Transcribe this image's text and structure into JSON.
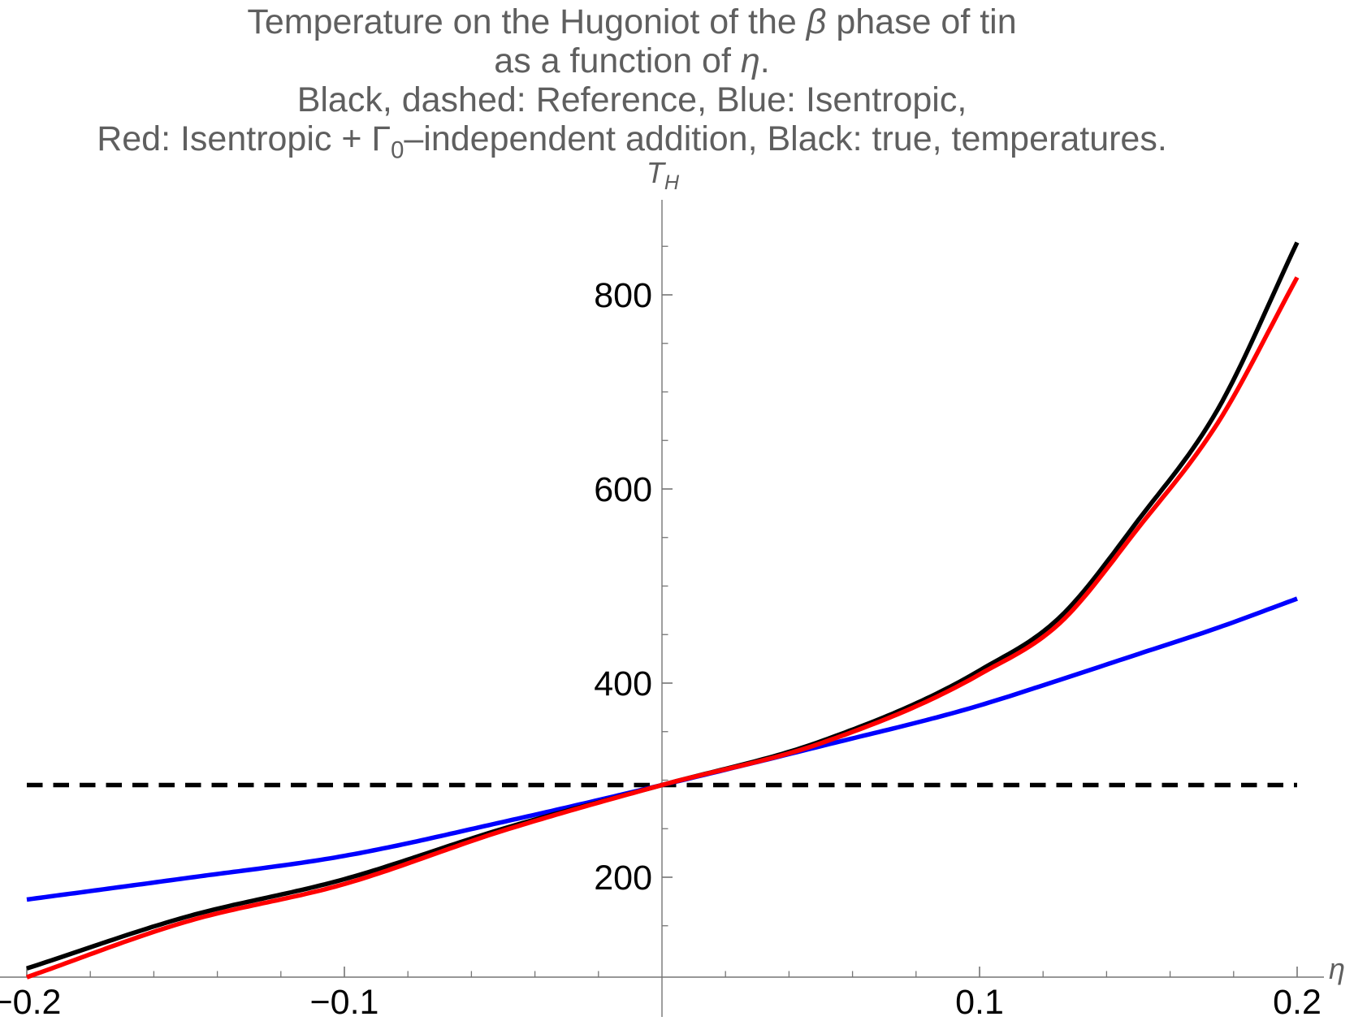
{
  "title": {
    "line1_pre": "Temperature on the Hugoniot of the ",
    "line1_italic": "β",
    "line1_post": " phase of tin",
    "line2_pre": "as a function of ",
    "line2_italic": "η",
    "line2_post": ".",
    "line3": "Black, dashed: Reference, Blue: Isentropic,",
    "line4_pre": "Red: Isentropic + Γ",
    "line4_sub": "0",
    "line4_post": "–independent addition, Black: true, temperatures."
  },
  "chart_data": {
    "type": "line",
    "title": "Temperature on the Hugoniot of the β phase of tin as a function of η. Black, dashed: Reference, Blue: Isentropic, Red: Isentropic + Γ0–independent addition, Black: true, temperatures.",
    "xlabel": "η",
    "ylabel": "TH",
    "ylabel_main": "T",
    "ylabel_sub": "H",
    "xlim": [
      -0.2,
      0.2
    ],
    "ylim": [
      60,
      900
    ],
    "grid": false,
    "legend_position": "in-title",
    "axes_color": "#757575",
    "tick_label_color": "#000000",
    "title_color": "#5f5f5f",
    "x_ticks": [
      -0.2,
      -0.1,
      0.1,
      0.2
    ],
    "x_tick_labels": [
      "−0.2",
      "−0.1",
      "0.1",
      "0.2"
    ],
    "x_minor_ticks": [
      -0.18,
      -0.16,
      -0.14,
      -0.12,
      -0.08,
      -0.06,
      -0.04,
      -0.02,
      0.02,
      0.04,
      0.06,
      0.08,
      0.12,
      0.14,
      0.16,
      0.18
    ],
    "y_ticks": [
      200,
      400,
      600,
      800
    ],
    "y_tick_labels": [
      "200",
      "400",
      "600",
      "800"
    ],
    "y_minor_ticks": [
      150,
      250,
      300,
      350,
      450,
      500,
      550,
      650,
      700,
      750,
      850
    ],
    "reference_temperature": 295,
    "x": [
      -0.2,
      -0.15,
      -0.1,
      -0.05,
      0,
      0.05,
      0.1,
      0.125,
      0.15,
      0.175,
      0.2
    ],
    "series": [
      {
        "name": "Reference",
        "style": "dashed",
        "color": "#000000",
        "values": [
          295,
          295,
          295,
          295,
          295,
          295,
          295,
          295,
          295,
          295,
          295
        ]
      },
      {
        "name": "Isentropic",
        "style": "solid",
        "color": "#0000ff",
        "values": [
          177,
          199,
          222,
          257,
          295,
          335,
          377,
          403,
          430,
          457,
          487
        ]
      },
      {
        "name": "True temperatures",
        "style": "solid",
        "color": "#000000",
        "values": [
          106,
          159,
          198,
          250,
          295,
          340,
          413,
          467,
          568,
          682,
          854
        ]
      },
      {
        "name": "Isentropic + Γ0–independent addition",
        "style": "solid",
        "color": "#ff0000",
        "values": [
          97,
          154,
          193,
          248,
          295,
          338,
          409,
          461,
          560,
          668,
          818
        ]
      }
    ]
  }
}
